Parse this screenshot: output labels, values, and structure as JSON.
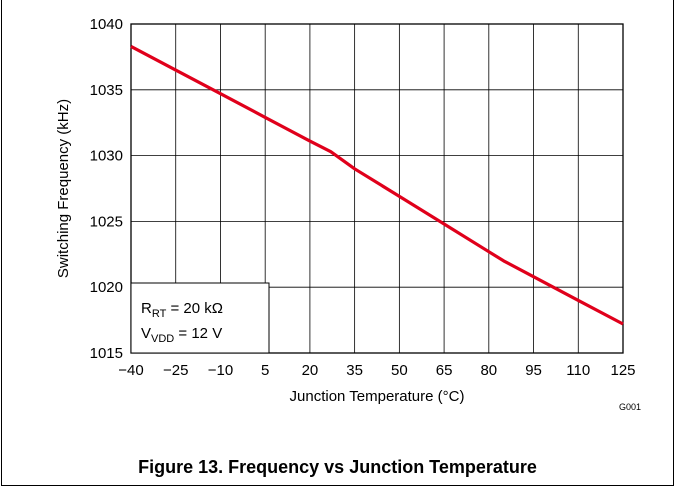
{
  "figure": {
    "caption": "Figure 13. Frequency vs Junction Temperature",
    "figure_id": "G001"
  },
  "chart_data": {
    "type": "line",
    "xlabel": "Junction Temperature (°C)",
    "ylabel": "Switching Frequency (kHz)",
    "xlim": [
      -40,
      125
    ],
    "ylim": [
      1015,
      1040
    ],
    "x_ticks": [
      -40,
      -25,
      -10,
      5,
      20,
      35,
      50,
      65,
      80,
      95,
      110,
      125
    ],
    "x_tick_labels": [
      "−40",
      "−25",
      "−10",
      "5",
      "20",
      "35",
      "50",
      "65",
      "80",
      "95",
      "110",
      "125"
    ],
    "y_ticks": [
      1015,
      1020,
      1025,
      1030,
      1035,
      1040
    ],
    "y_tick_labels": [
      "1015",
      "1020",
      "1025",
      "1030",
      "1035",
      "1040"
    ],
    "grid": true,
    "series": [
      {
        "color": "#e0001b",
        "x": [
          -40,
          -25,
          -10,
          5,
          20,
          27,
          35,
          50,
          65,
          80,
          85,
          95,
          110,
          125
        ],
        "y": [
          1038.3,
          1036.5,
          1034.7,
          1032.9,
          1031.1,
          1030.3,
          1029.0,
          1026.9,
          1024.8,
          1022.7,
          1022.0,
          1020.8,
          1019.0,
          1017.2
        ]
      }
    ],
    "legend": {
      "placement": "bottom-left",
      "line1_main": "R",
      "line1_sub": "RT",
      "line1_rest": " = 20 kΩ",
      "line2_main": "V",
      "line2_sub": "VDD",
      "line2_rest": " = 12 V"
    }
  }
}
